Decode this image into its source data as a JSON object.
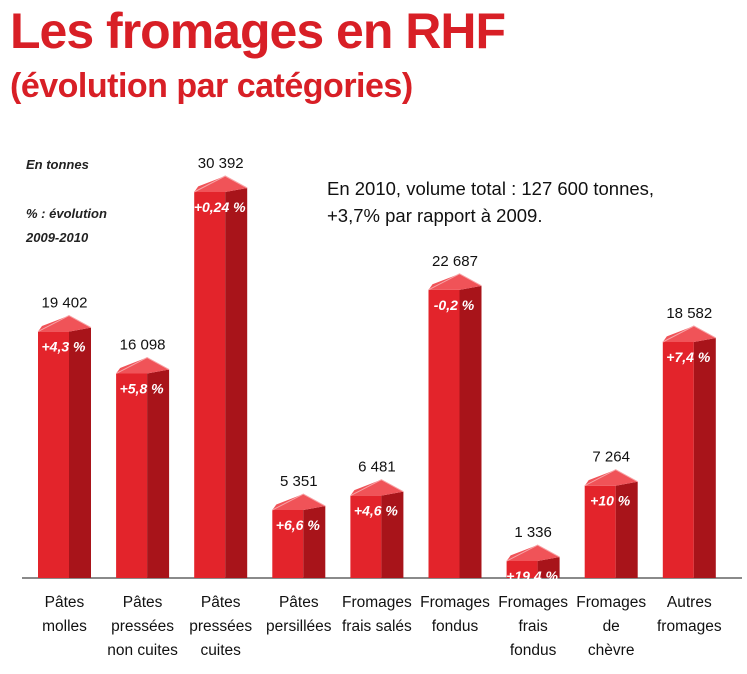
{
  "title": "Les fromages en RHF",
  "subtitle": "(évolution par catégories)",
  "unit_label": "En tonnes",
  "evolution_label_line1": "% : évolution",
  "evolution_label_line2": "2009-2010",
  "note_line1": "En 2010, volume total : 127 600 tonnes,",
  "note_line2": "+3,7% par rapport à 2009.",
  "colors": {
    "title": "#d81f26",
    "bar_front": "#e3242b",
    "bar_side": "#a8141a",
    "bar_top": "#f05358"
  },
  "chart_data": {
    "type": "bar",
    "title": "Les fromages en RHF",
    "subtitle": "(évolution par catégories)",
    "ylabel": "En tonnes",
    "ylim": [
      0,
      32000
    ],
    "grid": false,
    "categories": [
      [
        "Pâtes",
        "molles"
      ],
      [
        "Pâtes",
        "pressées",
        "non cuites"
      ],
      [
        "Pâtes",
        "pressées",
        "cuites"
      ],
      [
        "Pâtes",
        "persillées"
      ],
      [
        "Fromages",
        "frais salés"
      ],
      [
        "Fromages",
        "fondus"
      ],
      [
        "Fromages",
        "frais",
        "fondus"
      ],
      [
        "Fromages",
        "de",
        "chèvre"
      ],
      [
        "Autres",
        "fromages"
      ]
    ],
    "values": [
      19402,
      16098,
      30392,
      5351,
      6481,
      22687,
      1336,
      7264,
      18582
    ],
    "value_labels": [
      "19 402",
      "16 098",
      "30 392",
      "5 351",
      "6 481",
      "22 687",
      "1 336",
      "7 264",
      "18 582"
    ],
    "evolution_labels": [
      "+4,3 %",
      "+5,8 %",
      "+0,24 %",
      "+6,6 %",
      "+4,6 %",
      "-0,2 %",
      "+19,4 %",
      "+10 %",
      "+7,4 %"
    ]
  }
}
